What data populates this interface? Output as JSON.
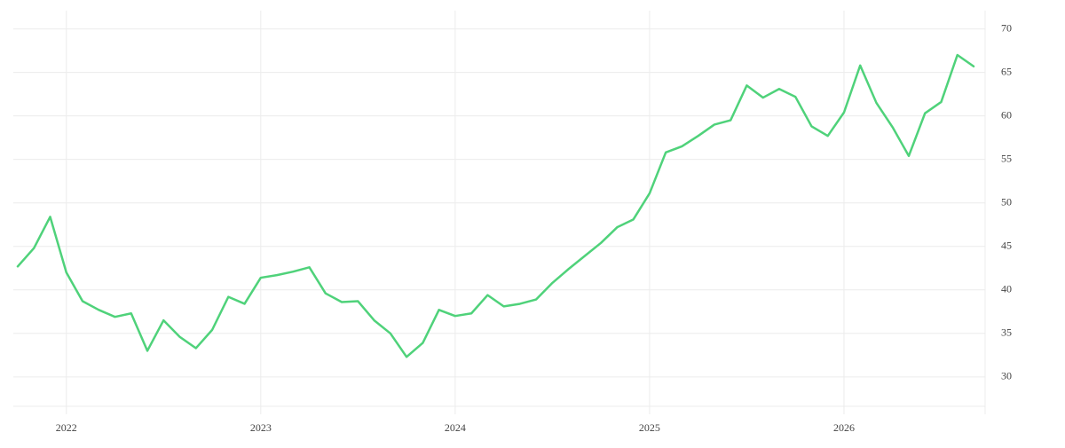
{
  "chart_data": {
    "type": "line",
    "categories": [
      null,
      null,
      null,
      "2022",
      null,
      null,
      null,
      null,
      null,
      null,
      null,
      null,
      null,
      null,
      null,
      "2023",
      null,
      null,
      null,
      null,
      null,
      null,
      null,
      null,
      null,
      null,
      null,
      "2024",
      null,
      null,
      null,
      null,
      null,
      null,
      null,
      null,
      null,
      null,
      null,
      "2025",
      null,
      null,
      null,
      null,
      null,
      null,
      null,
      null,
      null,
      null,
      null,
      "2026",
      null,
      null,
      null,
      null,
      null,
      null,
      null,
      null
    ],
    "values": [
      42.7,
      44.8,
      48.4,
      42.0,
      38.7,
      37.7,
      36.9,
      37.3,
      33.0,
      36.5,
      34.6,
      33.3,
      35.4,
      39.2,
      38.4,
      41.4,
      41.7,
      42.1,
      42.6,
      39.6,
      38.6,
      38.7,
      36.5,
      35.0,
      32.3,
      33.9,
      37.7,
      37.0,
      37.3,
      39.4,
      38.1,
      38.4,
      38.9,
      40.8,
      42.4,
      43.9,
      45.4,
      47.2,
      48.1,
      51.1,
      55.8,
      56.5,
      57.7,
      59.0,
      59.5,
      63.5,
      62.1,
      63.1,
      62.2,
      58.8,
      57.7,
      60.4,
      65.8,
      61.5,
      58.7,
      55.4,
      60.3,
      61.6,
      67.0,
      65.7
    ],
    "color": "#4fd27a",
    "ylim": [
      25.7,
      72.1
    ],
    "yticks": [
      30,
      35,
      40,
      45,
      50,
      55,
      60,
      65,
      70
    ],
    "y_axis_side": "right",
    "grid": true
  }
}
